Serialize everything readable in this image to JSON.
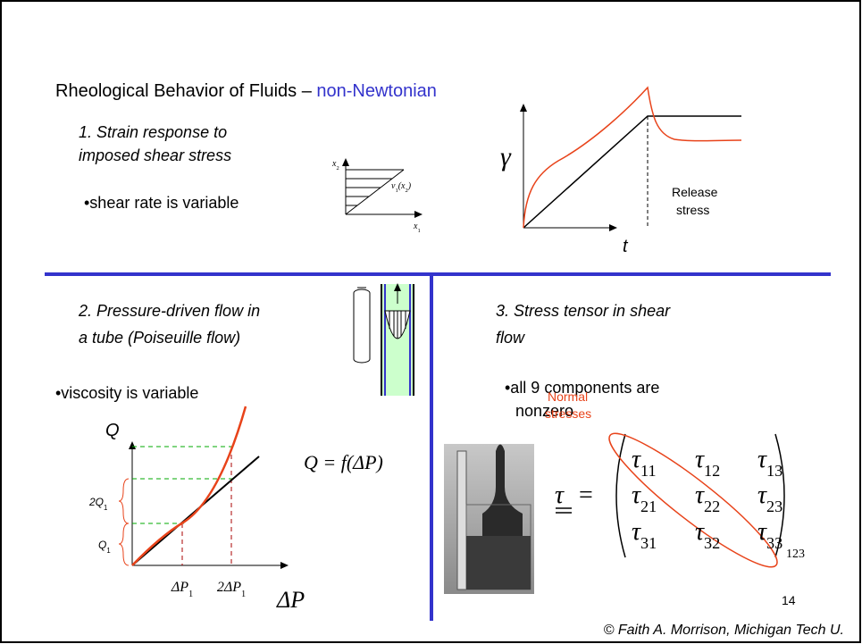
{
  "title": {
    "text": "Rheological Behavior of Fluids – ",
    "highlight": "non-Newtonian"
  },
  "strain_response": {
    "heading": [
      "1.  Strain response to",
      "imposed shear stress"
    ],
    "bullet": "•shear rate is variable",
    "sketch": {
      "x2": [
        "x",
        "2"
      ],
      "velocity": [
        "v",
        "1",
        "(x",
        "2",
        ")"
      ],
      "x1": [
        "x",
        "1"
      ]
    },
    "chart": {
      "y_label": "γ",
      "x_label": "t",
      "annotation": [
        "Release",
        "stress"
      ]
    }
  },
  "pressure_flow": {
    "heading": [
      "2.  Pressure-driven flow in",
      "a tube (Poiseuille flow)"
    ],
    "bullet": "•viscosity is variable",
    "chart": {
      "y_label": "Q",
      "x_label": "ΔP",
      "y_marks": [
        [
          "2Q",
          "1"
        ],
        [
          "Q",
          "1"
        ]
      ],
      "x_marks": [
        [
          "ΔP",
          "1"
        ],
        [
          "2ΔP",
          "1"
        ]
      ]
    },
    "equation": "Q = f(ΔP)"
  },
  "stress_tensor": {
    "heading": [
      "3.  Stress tensor in shear",
      "flow"
    ],
    "bullet": [
      "•all 9 components are",
      "nonzero"
    ],
    "annotation": [
      "Normal",
      "stresses"
    ],
    "symbol": "τ",
    "equals": "=",
    "matrix": [
      [
        [
          "τ",
          "11"
        ],
        [
          "τ",
          "12"
        ],
        [
          "τ",
          "13"
        ]
      ],
      [
        [
          "τ",
          "21"
        ],
        [
          "τ",
          "22"
        ],
        [
          "τ",
          "23"
        ]
      ],
      [
        [
          "τ",
          "31"
        ],
        [
          "τ",
          "32"
        ],
        [
          "τ",
          "33"
        ]
      ]
    ],
    "basis": "123"
  },
  "page_number": "14",
  "footer": "© Faith A. Morrison, Michigan Tech U."
}
